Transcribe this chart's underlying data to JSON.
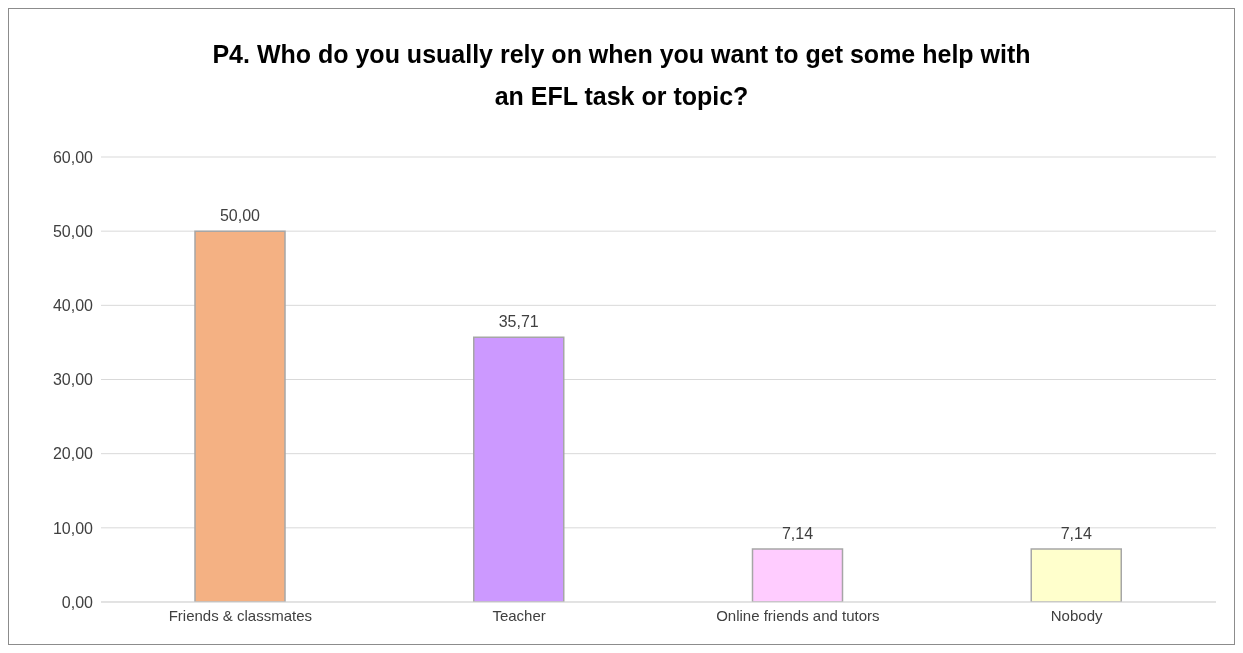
{
  "chart_data": {
    "type": "bar",
    "title": "P4. Who do you usually rely on when you want to get some help with an EFL task or topic?",
    "categories": [
      "Friends & classmates",
      "Teacher",
      "Online friends and tutors",
      "Nobody"
    ],
    "values": [
      50.0,
      35.71,
      7.14,
      7.14
    ],
    "value_labels": [
      "50,00",
      "35,71",
      "7,14",
      "7,14"
    ],
    "colors": [
      "#f4b183",
      "#cc99ff",
      "#ffccff",
      "#ffffcc"
    ],
    "ylim": [
      0,
      60
    ],
    "yticks": [
      {
        "value": 0,
        "label": "0,00"
      },
      {
        "value": 10,
        "label": "10,00"
      },
      {
        "value": 20,
        "label": "20,00"
      },
      {
        "value": 30,
        "label": "30,00"
      },
      {
        "value": 40,
        "label": "40,00"
      },
      {
        "value": 50,
        "label": "50,00"
      },
      {
        "value": 60,
        "label": "60,00"
      }
    ],
    "grid": "y",
    "legend": false
  }
}
